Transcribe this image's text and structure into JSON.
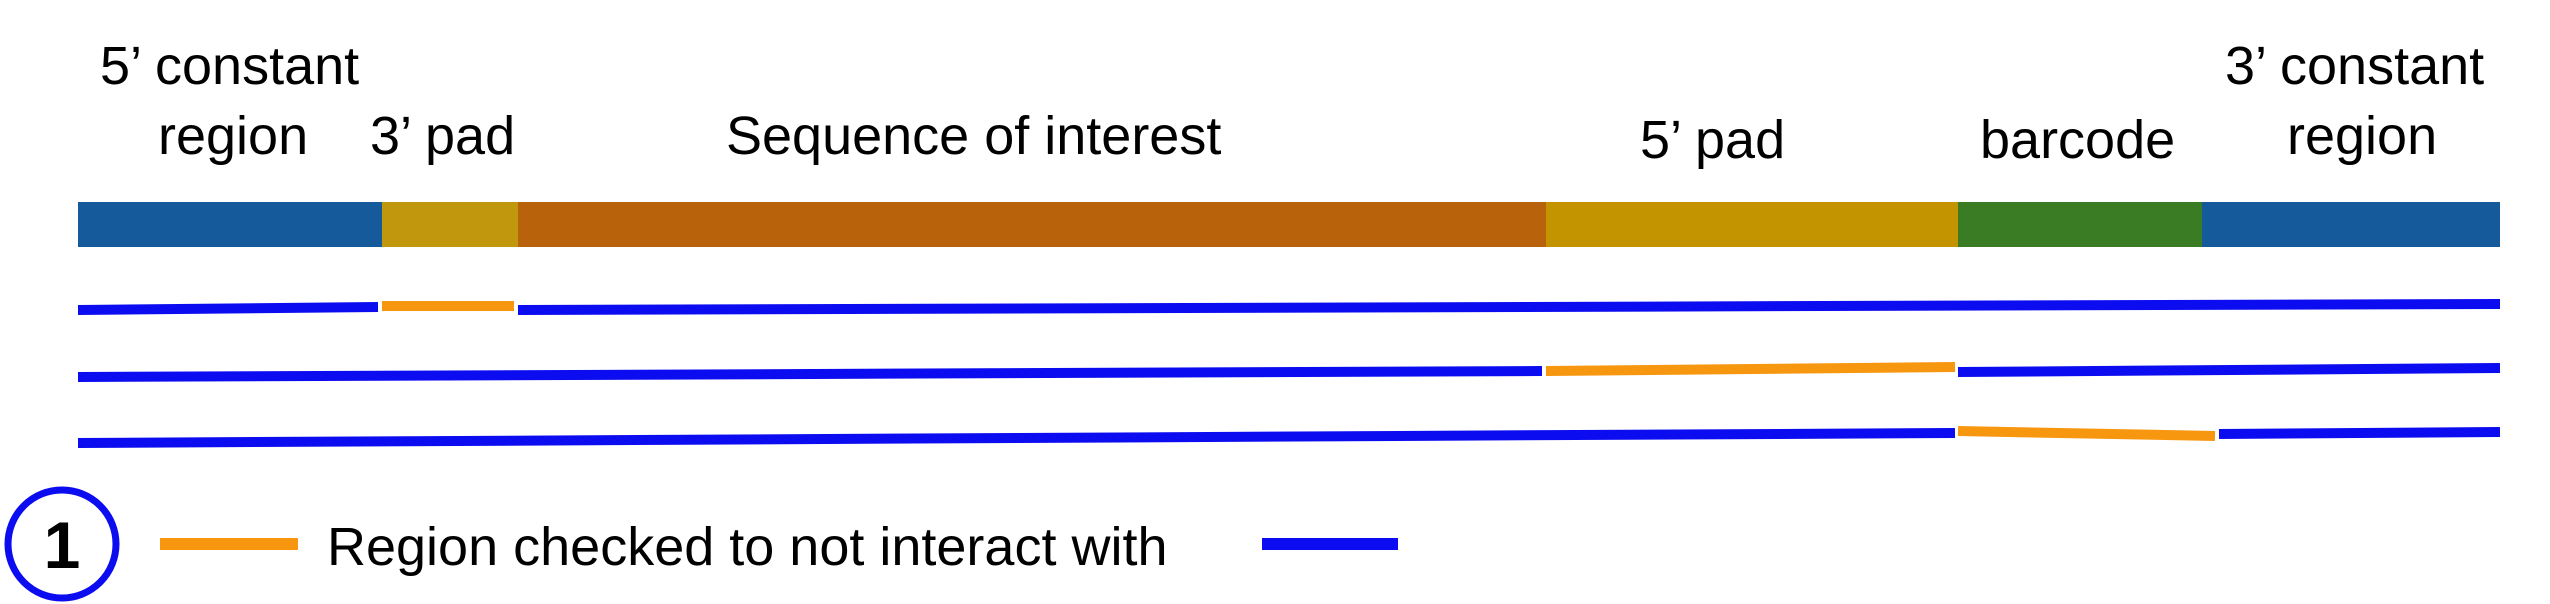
{
  "labels": {
    "five_const_line1": "5’ constant",
    "five_const_line2": "region",
    "three_pad": "3’ pad",
    "sequence_of_interest": "Sequence of interest",
    "five_pad": "5’ pad",
    "barcode": "barcode",
    "three_const_line1": "3’ constant",
    "three_const_line2": "region"
  },
  "segments": [
    {
      "id": "five-constant-region",
      "color": "#155a9b"
    },
    {
      "id": "three-pad",
      "color": "#c0970d"
    },
    {
      "id": "sequence-of-interest",
      "color": "#b8620b"
    },
    {
      "id": "five-pad",
      "color": "#c49400"
    },
    {
      "id": "barcode",
      "color": "#3a7c23"
    },
    {
      "id": "three-constant-region",
      "color": "#155a9b"
    }
  ],
  "checks": [
    {
      "checked_segment": "three-pad"
    },
    {
      "checked_segment": "five-pad"
    },
    {
      "checked_segment": "barcode"
    }
  ],
  "legend": {
    "step_number": "1",
    "text": "Region checked to not interact with"
  },
  "colors": {
    "checked_line": "#f7960f",
    "other_line": "#0c0cf0",
    "step_circle": "#0c0cf0"
  }
}
